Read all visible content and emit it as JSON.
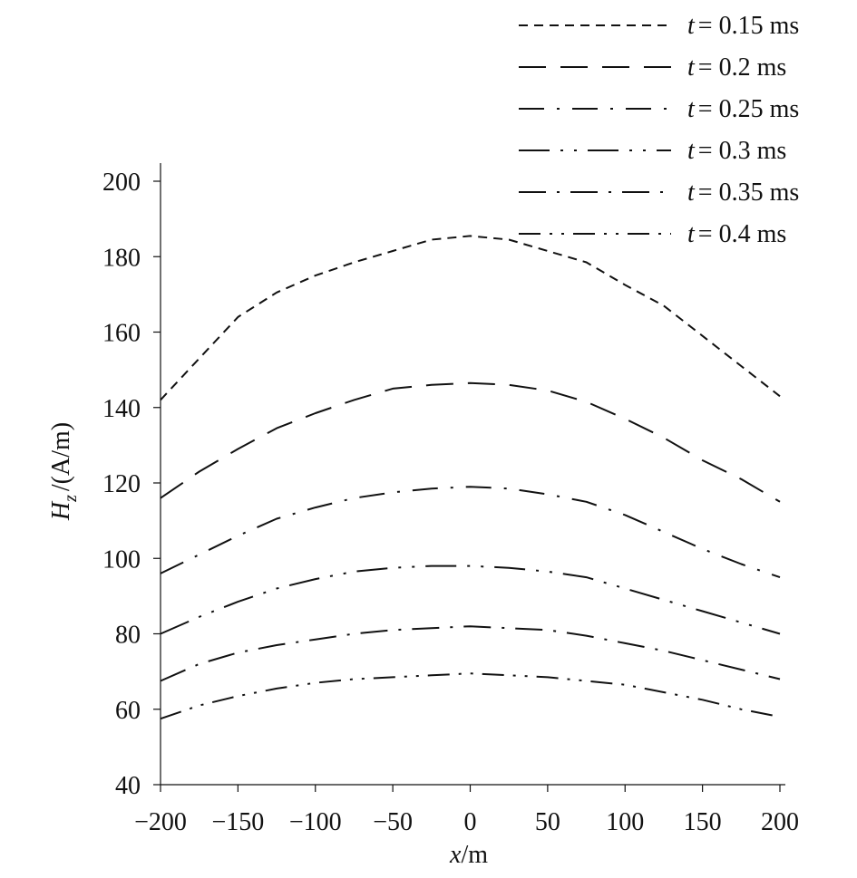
{
  "chart_data": {
    "type": "line",
    "title": "",
    "xlabel": "x/m",
    "ylabel": "H_z /(A/m)",
    "xlim": [
      -200,
      200
    ],
    "ylim": [
      40,
      205
    ],
    "x_ticks": [
      -200,
      -150,
      -100,
      -50,
      0,
      50,
      100,
      150,
      200
    ],
    "y_ticks": [
      40,
      60,
      80,
      100,
      120,
      140,
      160,
      180,
      200
    ],
    "x_tick_labels": [
      "−200",
      "−150",
      "−100",
      "−50",
      "0",
      "50",
      "100",
      "150",
      "200"
    ],
    "y_tick_labels": [
      "40",
      "60",
      "80",
      "100",
      "120",
      "140",
      "160",
      "180",
      "200"
    ],
    "grid": false,
    "legend_position": "top-right",
    "x": [
      -200,
      -175,
      -150,
      -125,
      -100,
      -75,
      -50,
      -25,
      0,
      25,
      50,
      75,
      100,
      125,
      150,
      175,
      200
    ],
    "series": [
      {
        "name": "t = 0.15 ms",
        "legend_label": "= 0.15 ms",
        "dash": "10 7",
        "values": [
          142,
          153,
          164,
          170.5,
          175,
          178.5,
          181.5,
          184.5,
          185.5,
          184.5,
          181.5,
          178.5,
          172.5,
          167,
          159,
          151,
          143
        ]
      },
      {
        "name": "t = 0.2 ms",
        "legend_label": "= 0.2 ms",
        "dash": "30 16",
        "values": [
          116,
          123,
          129,
          134.5,
          138.5,
          142,
          145,
          146,
          146.5,
          146,
          144.5,
          141.5,
          137,
          132,
          126,
          121,
          115
        ]
      },
      {
        "name": "t = 0.25 ms",
        "legend_label": "= 0.25 ms",
        "dash": "28 14 3 14",
        "values": [
          96,
          101,
          106,
          110.5,
          113.5,
          116,
          117.5,
          118.5,
          119,
          118.5,
          117,
          115,
          111.5,
          107,
          102.5,
          98.5,
          95
        ]
      },
      {
        "name": "t = 0.3 ms",
        "legend_label": "= 0.3 ms",
        "dash": "34 12 3 12 3 12",
        "values": [
          80,
          84.5,
          88.5,
          92,
          94.5,
          96.5,
          97.5,
          98,
          98,
          97.5,
          96.5,
          95,
          92,
          89,
          86,
          83,
          80
        ]
      },
      {
        "name": "t = 0.35 ms",
        "legend_label": "= 0.35 ms",
        "dash": "30 12 3 12",
        "values": [
          67.5,
          72,
          75,
          77,
          78.5,
          80,
          81,
          81.5,
          82,
          81.5,
          81,
          79.5,
          77.5,
          75.5,
          73,
          70.5,
          68
        ]
      },
      {
        "name": "t = 0.4 ms",
        "legend_label": "= 0.4 ms",
        "dash": "24 10 3 10 3 10",
        "values": [
          57.5,
          61,
          63.5,
          65.5,
          67,
          68,
          68.5,
          69,
          69.5,
          69,
          68.5,
          67.5,
          66.5,
          64.5,
          62.5,
          60,
          58
        ]
      }
    ],
    "legend_t_symbol": "t"
  }
}
